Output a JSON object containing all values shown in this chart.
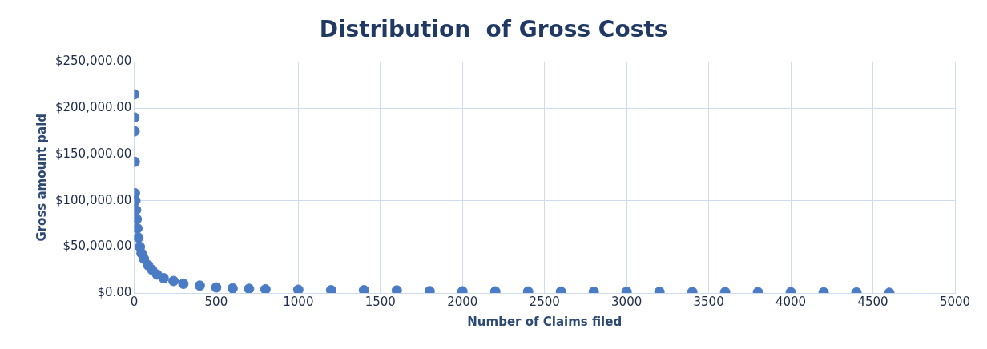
{
  "chart_data": {
    "type": "scatter",
    "title": "Distribution  of Gross Costs",
    "xlabel": "Number of Claims filed",
    "ylabel": "Gross amount paid",
    "x": [
      1,
      2,
      3,
      4,
      5,
      8,
      12,
      16,
      20,
      26,
      35,
      45,
      60,
      86,
      110,
      140,
      180,
      240,
      300,
      400,
      500,
      600,
      700,
      800,
      1000,
      1200,
      1400,
      1600,
      1800,
      2000,
      2200,
      2400,
      2600,
      2800,
      3000,
      3200,
      3400,
      3600,
      3800,
      4000,
      4200,
      4400,
      4600
    ],
    "series": [
      {
        "color": "#4a7bc4",
        "values": [
          215000,
          190000,
          175000,
          142000,
          108000,
          100000,
          90000,
          80000,
          70000,
          60000,
          50000,
          43000,
          37000,
          30000,
          25000,
          20000,
          16000,
          13000,
          10000,
          8000,
          6000,
          5000,
          4500,
          4000,
          3500,
          3000,
          3000,
          2800,
          2000,
          1800,
          1700,
          1600,
          1500,
          1400,
          1300,
          1200,
          1100,
          1000,
          900,
          800,
          700,
          500,
          200
        ]
      }
    ],
    "xlim": [
      0,
      5000
    ],
    "xticks": [
      0,
      500,
      1000,
      1500,
      2000,
      2500,
      3000,
      3500,
      4000,
      4500,
      5000
    ],
    "ylim": [
      0,
      250000
    ],
    "yticks": [
      {
        "value": 0,
        "label": "$0.00"
      },
      {
        "value": 50000,
        "label": "$50,000.00"
      },
      {
        "value": 100000,
        "label": "$100,000.00"
      },
      {
        "value": 150000,
        "label": "$150,000.00"
      },
      {
        "value": 200000,
        "label": "$200,000.00"
      },
      {
        "value": 250000,
        "label": "$250,000.00"
      }
    ],
    "grid": true,
    "marker": "circle",
    "legend": false
  }
}
